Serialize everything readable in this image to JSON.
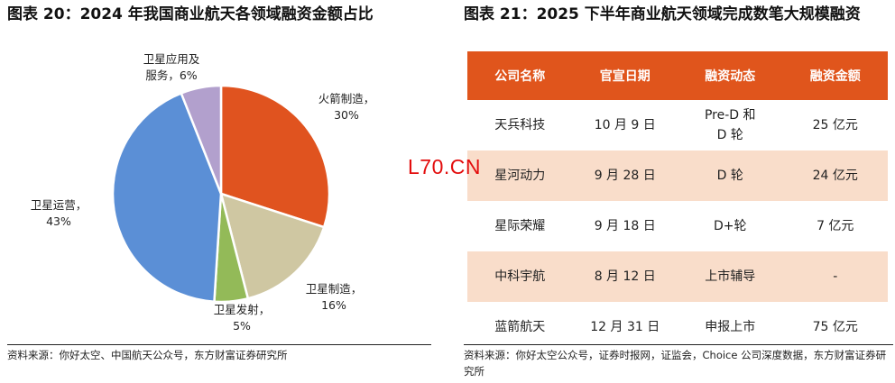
{
  "watermark": "L70.CN",
  "left_panel": {
    "title": "图表 20：2024 年我国商业航天各领域融资金额占比",
    "source": "资料来源：你好太空、中国航天公众号，东方财富证券研究所"
  },
  "right_panel": {
    "title": "图表 21：2025 下半年商业航天领域完成数笔大规模融资",
    "source": "资料来源：你好太空公众号，证券时报网，证监会，Choice 公司深度数据，东方财富证券研究所",
    "table": {
      "headers": [
        "公司名称",
        "官宣日期",
        "融资动态",
        "融资金额"
      ],
      "rows": [
        [
          "天兵科技",
          "10 月 9 日",
          "Pre-D 和 D 轮",
          "25 亿元"
        ],
        [
          "星河动力",
          "9 月 28 日",
          "D 轮",
          "24 亿元"
        ],
        [
          "星际荣耀",
          "9 月 18 日",
          "D+轮",
          "7 亿元"
        ],
        [
          "中科宇航",
          "8 月 12 日",
          "上市辅导",
          "-"
        ],
        [
          "蓝箭航天",
          "12 月 31 日",
          "申报上市",
          "75 亿元"
        ]
      ]
    }
  },
  "chart_data": {
    "type": "pie",
    "title": "",
    "slices": [
      {
        "label": "火箭制造，30%",
        "value": 30,
        "color": "#e0531f"
      },
      {
        "label": "卫星制造，16%",
        "value": 16,
        "color": "#cfc7a2"
      },
      {
        "label": "卫星发射，5%",
        "value": 5,
        "color": "#93ba58"
      },
      {
        "label": "卫星运营，43%",
        "value": 43,
        "color": "#5b8fd6"
      },
      {
        "label": "卫星应用及服务，6%",
        "value": 6,
        "color": "#b2a0cd"
      }
    ]
  }
}
